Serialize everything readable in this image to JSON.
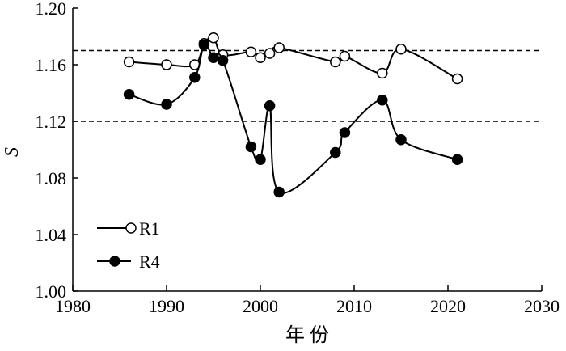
{
  "chart_data": {
    "type": "line",
    "xlabel": "年 份",
    "ylabel": "S",
    "xlim": [
      1980,
      2030
    ],
    "ylim": [
      1.0,
      1.2
    ],
    "xticks": [
      "1980",
      "1990",
      "2000",
      "2010",
      "2020",
      "2030"
    ],
    "yticks": [
      "1.00",
      "1.04",
      "1.08",
      "1.12",
      "1.16",
      "1.20"
    ],
    "reference_lines": [
      1.17,
      1.12
    ],
    "grid": false,
    "legend_position": "bottom-left",
    "series": [
      {
        "name": "R1",
        "marker": "open-circle",
        "x": [
          1986,
          1990,
          1993,
          1994,
          1995,
          1996,
          1999,
          2000,
          2001,
          2002,
          2008,
          2009,
          2013,
          2015,
          2021
        ],
        "y": [
          1.162,
          1.16,
          1.16,
          1.175,
          1.179,
          1.167,
          1.169,
          1.165,
          1.168,
          1.172,
          1.162,
          1.166,
          1.154,
          1.171,
          1.15
        ]
      },
      {
        "name": "R4",
        "marker": "filled-circle",
        "x": [
          1986,
          1990,
          1993,
          1994,
          1995,
          1996,
          1999,
          2000,
          2001,
          2002,
          2008,
          2009,
          2013,
          2015,
          2021
        ],
        "y": [
          1.139,
          1.132,
          1.151,
          1.174,
          1.165,
          1.163,
          1.102,
          1.093,
          1.131,
          1.07,
          1.098,
          1.112,
          1.135,
          1.107,
          1.093
        ]
      }
    ]
  }
}
